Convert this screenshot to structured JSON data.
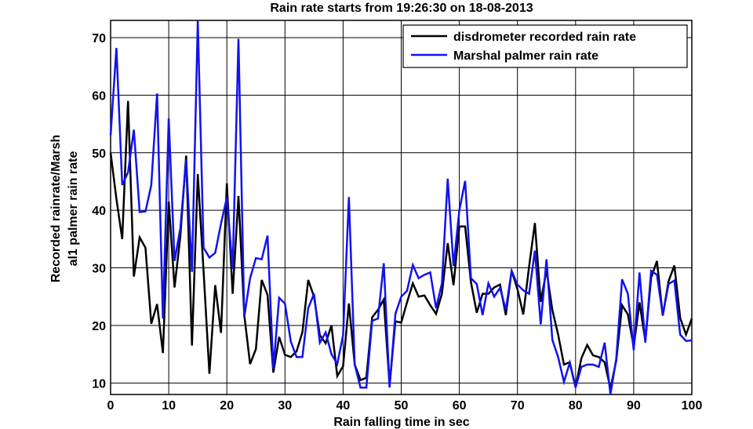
{
  "chart_data": {
    "type": "line",
    "title": "Rain rate starts from 19:26:30 on 18-08-2013",
    "xlabel": "Rain falling time in sec",
    "ylabel_lines": [
      "Recorded rainrate/Marsh",
      "al1 palmer rain rate"
    ],
    "xlim": [
      0,
      100
    ],
    "ylim": [
      8,
      73
    ],
    "xticks": [
      0,
      10,
      20,
      30,
      40,
      50,
      60,
      70,
      80,
      90,
      100
    ],
    "yticks": [
      10,
      20,
      30,
      40,
      50,
      60,
      70
    ],
    "grid": true,
    "legend_position": "top-right",
    "x": [
      0,
      1,
      2,
      3,
      4,
      5,
      6,
      7,
      8,
      9,
      10,
      11,
      12,
      13,
      14,
      15,
      16,
      17,
      18,
      19,
      20,
      21,
      22,
      23,
      24,
      25,
      26,
      27,
      28,
      29,
      30,
      31,
      32,
      33,
      34,
      35,
      36,
      37,
      38,
      39,
      40,
      41,
      42,
      43,
      44,
      45,
      46,
      47,
      48,
      49,
      50,
      51,
      52,
      53,
      54,
      55,
      56,
      57,
      58,
      59,
      60,
      61,
      62,
      63,
      64,
      65,
      66,
      67,
      68,
      69,
      70,
      71,
      72,
      73,
      74,
      75,
      76,
      77,
      78,
      79,
      80,
      81,
      82,
      83,
      84,
      85,
      86,
      87,
      88,
      89,
      90,
      91,
      92,
      93,
      94,
      95,
      96,
      97,
      98,
      99,
      100
    ],
    "series": [
      {
        "name": "disdrometer recorded rain rate",
        "color": "#000000",
        "values": [
          50,
          42,
          35,
          59,
          28.5,
          35.3,
          33.5,
          20.3,
          23.7,
          15.2,
          41.5,
          26.6,
          35.5,
          49.5,
          16.5,
          46.3,
          29.4,
          11.6,
          27,
          18.7,
          44.7,
          25.5,
          42.5,
          21.8,
          13.3,
          15.9,
          27.9,
          25.3,
          11.8,
          18,
          14.9,
          14.5,
          15.5,
          18.8,
          27.9,
          25,
          18.3,
          16.9,
          20,
          11.2,
          12.9,
          23.8,
          13.2,
          10.5,
          10.9,
          21.4,
          22.7,
          24.5,
          9.6,
          20.7,
          20.5,
          24,
          27.3,
          25,
          25.2,
          23.5,
          22,
          25.5,
          34.3,
          27,
          37.2,
          37.2,
          27.5,
          22.2,
          25.5,
          25.5,
          26.6,
          27.1,
          21.8,
          29.5,
          26.3,
          21.9,
          30.2,
          37.8,
          24.1,
          29.6,
          22.7,
          18.4,
          13.2,
          13.6,
          9.3,
          14.3,
          16.6,
          14.8,
          14.5,
          13.6,
          9,
          13.9,
          23.5,
          21.9,
          16.3,
          24,
          17.3,
          28.3,
          31.2,
          21.7,
          27.7,
          30.4,
          21.3,
          18.4,
          21.2
        ]
      },
      {
        "name": "Marshal palmer rain rate",
        "color": "#1212ee",
        "values": [
          53,
          68.2,
          44.4,
          46.6,
          54,
          39.7,
          39.8,
          44.4,
          60.3,
          21.2,
          56,
          31.2,
          36.9,
          48.8,
          29.3,
          72.9,
          33.5,
          31.8,
          32.6,
          37.7,
          42.2,
          29.8,
          69.8,
          21.5,
          28.2,
          31.7,
          31.5,
          35.6,
          12.5,
          24.8,
          23.8,
          17.2,
          14.5,
          14.5,
          23,
          25.5,
          17,
          18.8,
          15,
          13.3,
          18.3,
          42.3,
          13.2,
          9.2,
          9.2,
          20.8,
          21.2,
          30.8,
          9.2,
          22,
          25,
          26,
          30.5,
          28.2,
          28.8,
          29.2,
          23,
          27.3,
          45.5,
          30.3,
          40,
          45.1,
          28.2,
          27.2,
          21.8,
          27.3,
          25,
          26.5,
          22.7,
          29.5,
          27.1,
          26.1,
          25.5,
          33,
          20.2,
          31.5,
          17.5,
          14.5,
          10.2,
          13.5,
          9.2,
          12.8,
          13.2,
          13.2,
          12.8,
          17,
          8,
          14.2,
          28,
          25.5,
          15.7,
          29.2,
          17,
          29.5,
          28.8,
          21.8,
          27.2,
          27.8,
          18.4,
          17.3,
          17.4
        ]
      }
    ]
  }
}
